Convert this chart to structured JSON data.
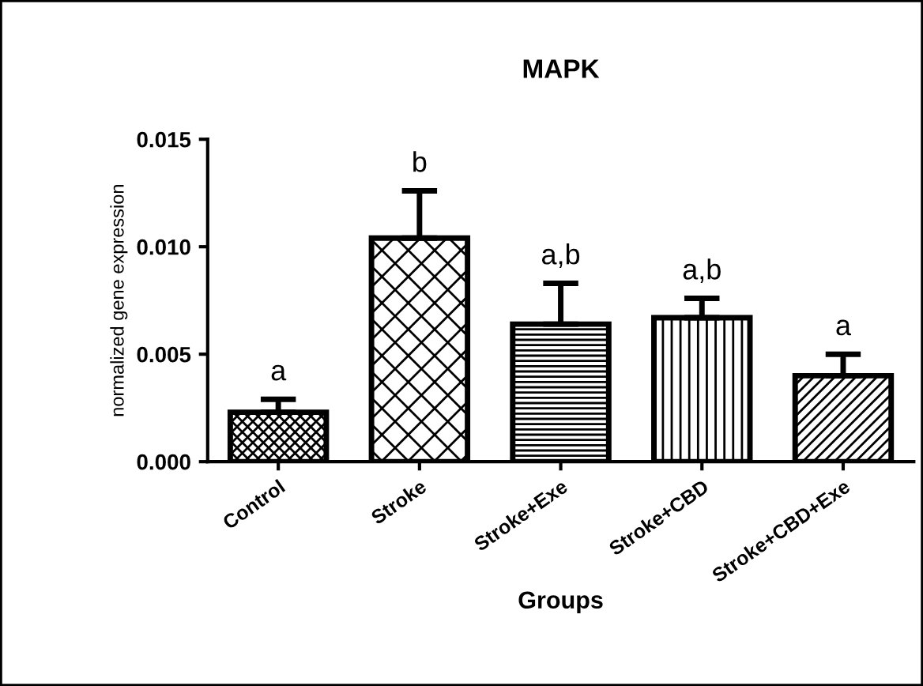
{
  "chart_data": {
    "type": "bar",
    "title": "MAPK",
    "xlabel": "Groups",
    "ylabel": "normalized gene expression",
    "categories": [
      "Control",
      "Stroke",
      "Stroke+Exe",
      "Stroke+CBD",
      "Stroke+CBD+Exe"
    ],
    "values": [
      0.0023,
      0.0104,
      0.0064,
      0.0067,
      0.004
    ],
    "errors": [
      [
        0.0023,
        0.0029
      ],
      [
        0.0104,
        0.0126
      ],
      [
        0.0064,
        0.0083
      ],
      [
        0.0067,
        0.0076
      ],
      [
        0.004,
        0.005
      ]
    ],
    "ylim": [
      0,
      0.015
    ],
    "yticks": [
      {
        "value": 0,
        "label": "0.000"
      },
      {
        "value": 0.005,
        "label": "0.005"
      },
      {
        "value": 0.01,
        "label": "0.010"
      },
      {
        "value": 0.015,
        "label": "0.015"
      }
    ],
    "annotations": [
      "a",
      "b",
      "a,b",
      "a,b",
      "a"
    ],
    "grid": false,
    "legend": false
  }
}
